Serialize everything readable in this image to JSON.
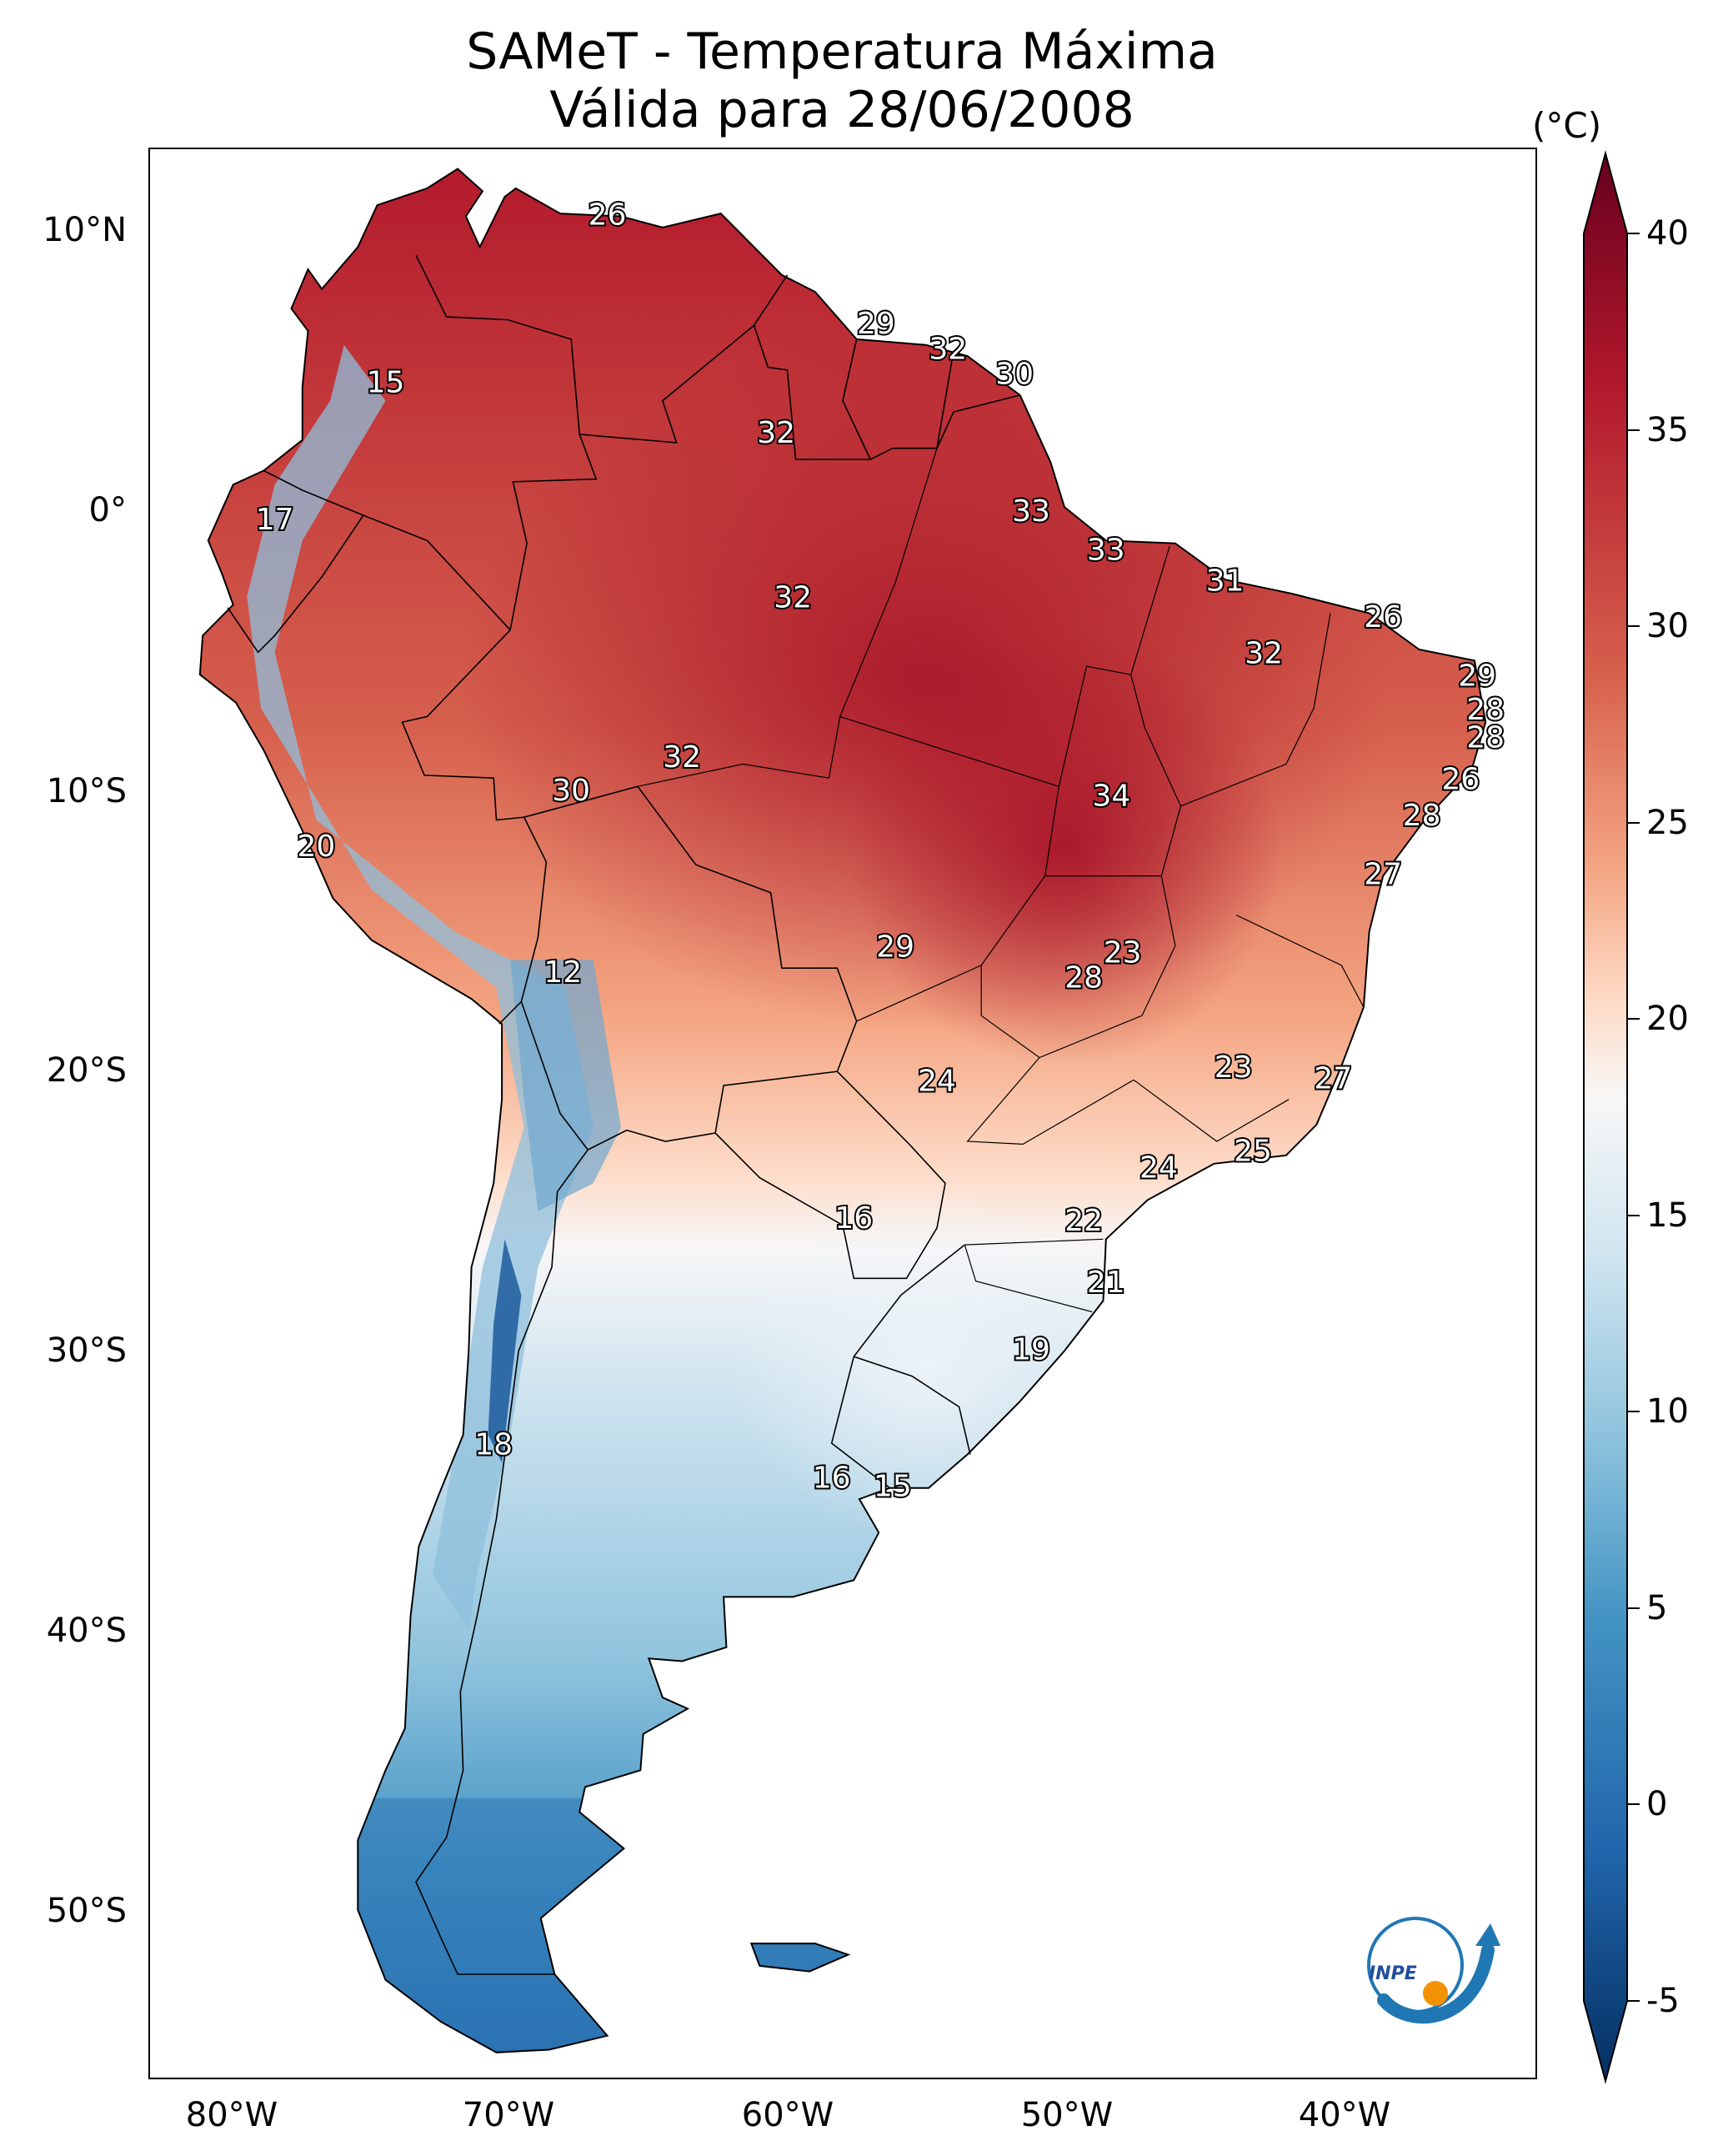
{
  "title": {
    "line1": "SAMeT - Temperatura Máxima",
    "line2": "Válida para 28/06/2008"
  },
  "map": {
    "lat_range": [
      -56,
      13
    ],
    "lon_range": [
      -83,
      -33
    ],
    "lat_labels": [
      {
        "lat": 10,
        "text": "10°N"
      },
      {
        "lat": 0,
        "text": "0°"
      },
      {
        "lat": -10,
        "text": "10°S"
      },
      {
        "lat": -20,
        "text": "20°S"
      },
      {
        "lat": -30,
        "text": "30°S"
      },
      {
        "lat": -40,
        "text": "40°S"
      },
      {
        "lat": -50,
        "text": "50°S"
      }
    ],
    "lon_labels": [
      {
        "lon": -80,
        "text": "80°W"
      },
      {
        "lon": -70,
        "text": "70°W"
      },
      {
        "lon": -60,
        "text": "60°W"
      },
      {
        "lon": -50,
        "text": "50°W"
      },
      {
        "lon": -40,
        "text": "40°W"
      }
    ],
    "station_values": [
      {
        "lon": -66.5,
        "lat": 10.6,
        "v": "26"
      },
      {
        "lon": -74.5,
        "lat": 4.6,
        "v": "15"
      },
      {
        "lon": -78.5,
        "lat": -0.3,
        "v": "17"
      },
      {
        "lon": -56.8,
        "lat": 6.7,
        "v": "29"
      },
      {
        "lon": -54.2,
        "lat": 5.8,
        "v": "32"
      },
      {
        "lon": -51.8,
        "lat": 4.9,
        "v": "30"
      },
      {
        "lon": -60.4,
        "lat": 2.8,
        "v": "32"
      },
      {
        "lon": -59.8,
        "lat": -3.1,
        "v": "32"
      },
      {
        "lon": -51.2,
        "lat": 0.0,
        "v": "33"
      },
      {
        "lon": -48.5,
        "lat": -1.4,
        "v": "33"
      },
      {
        "lon": -44.2,
        "lat": -2.5,
        "v": "31"
      },
      {
        "lon": -38.5,
        "lat": -3.8,
        "v": "26"
      },
      {
        "lon": -42.8,
        "lat": -5.1,
        "v": "32"
      },
      {
        "lon": -35.1,
        "lat": -5.9,
        "v": "29"
      },
      {
        "lon": -34.8,
        "lat": -7.1,
        "v": "28"
      },
      {
        "lon": -34.8,
        "lat": -8.1,
        "v": "28"
      },
      {
        "lon": -35.7,
        "lat": -9.6,
        "v": "26"
      },
      {
        "lon": -37.1,
        "lat": -10.9,
        "v": "28"
      },
      {
        "lon": -38.5,
        "lat": -13.0,
        "v": "27"
      },
      {
        "lon": -63.8,
        "lat": -8.8,
        "v": "32"
      },
      {
        "lon": -67.8,
        "lat": -10.0,
        "v": "30"
      },
      {
        "lon": -48.3,
        "lat": -10.2,
        "v": "34"
      },
      {
        "lon": -77.0,
        "lat": -12.0,
        "v": "20"
      },
      {
        "lon": -68.1,
        "lat": -16.5,
        "v": "12"
      },
      {
        "lon": -56.1,
        "lat": -15.6,
        "v": "29"
      },
      {
        "lon": -47.9,
        "lat": -15.8,
        "v": "23"
      },
      {
        "lon": -49.3,
        "lat": -16.7,
        "v": "28"
      },
      {
        "lon": -54.6,
        "lat": -20.4,
        "v": "24"
      },
      {
        "lon": -43.9,
        "lat": -19.9,
        "v": "23"
      },
      {
        "lon": -40.3,
        "lat": -20.3,
        "v": "27"
      },
      {
        "lon": -46.6,
        "lat": -23.5,
        "v": "24"
      },
      {
        "lon": -43.2,
        "lat": -22.9,
        "v": "25"
      },
      {
        "lon": -57.6,
        "lat": -25.3,
        "v": "16"
      },
      {
        "lon": -49.3,
        "lat": -25.4,
        "v": "22"
      },
      {
        "lon": -48.5,
        "lat": -27.6,
        "v": "21"
      },
      {
        "lon": -51.2,
        "lat": -30.0,
        "v": "19"
      },
      {
        "lon": -70.6,
        "lat": -33.4,
        "v": "18"
      },
      {
        "lon": -58.4,
        "lat": -34.6,
        "v": "16"
      },
      {
        "lon": -56.2,
        "lat": -34.9,
        "v": "15"
      }
    ]
  },
  "colorbar": {
    "unit": "(°C)",
    "min": -7,
    "max": 42,
    "ticks": [
      "-5",
      "0",
      "5",
      "10",
      "15",
      "20",
      "25",
      "30",
      "35",
      "40"
    ],
    "colors": [
      "#053061",
      "#2166ac",
      "#4393c3",
      "#92c5de",
      "#d1e5f0",
      "#f7f7f7",
      "#fddbc7",
      "#f4a582",
      "#d6604d",
      "#b2182b",
      "#67001f"
    ]
  },
  "logo": {
    "text": "INPE"
  }
}
